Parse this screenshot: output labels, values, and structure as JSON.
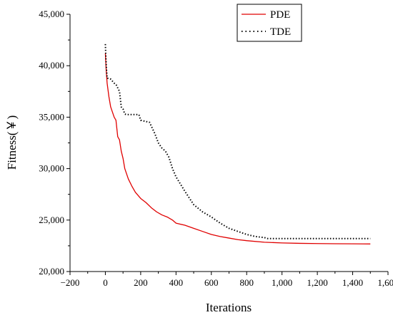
{
  "chart_data": {
    "type": "line",
    "title": "",
    "xlabel": "Iterations",
    "ylabel": "Fitness(￥)",
    "xlim": [
      -200,
      1600
    ],
    "ylim": [
      20000,
      45000
    ],
    "xticks": [
      -200,
      0,
      200,
      400,
      600,
      800,
      1000,
      1200,
      1400,
      1600
    ],
    "xtick_labels": [
      "−200",
      "0",
      "200",
      "400",
      "600",
      "800",
      "1,000",
      "1,200",
      "1,400",
      "1,600"
    ],
    "yticks": [
      20000,
      25000,
      30000,
      35000,
      40000,
      45000
    ],
    "ytick_labels": [
      "20,000",
      "25,000",
      "30,000",
      "35,000",
      "40,000",
      "45,000"
    ],
    "grid": false,
    "legend_position": "top-right",
    "series": [
      {
        "name": "PDE",
        "color": "#e00000",
        "style": "solid",
        "x": [
          0,
          5,
          10,
          20,
          30,
          40,
          50,
          60,
          70,
          80,
          90,
          100,
          110,
          120,
          130,
          150,
          170,
          190,
          200,
          230,
          260,
          290,
          320,
          350,
          380,
          400,
          450,
          500,
          550,
          600,
          650,
          700,
          750,
          800,
          900,
          1000,
          1100,
          1200,
          1300,
          1400,
          1500
        ],
        "y": [
          41200,
          39500,
          38300,
          37000,
          36000,
          35500,
          35000,
          34700,
          33100,
          32800,
          31700,
          31000,
          30000,
          29500,
          29000,
          28300,
          27700,
          27300,
          27100,
          26700,
          26200,
          25800,
          25500,
          25300,
          25000,
          24700,
          24500,
          24200,
          23900,
          23600,
          23400,
          23250,
          23100,
          23000,
          22850,
          22780,
          22740,
          22720,
          22700,
          22690,
          22680
        ]
      },
      {
        "name": "TDE",
        "color": "#000000",
        "style": "dotted",
        "x": [
          0,
          5,
          10,
          30,
          50,
          60,
          80,
          90,
          100,
          110,
          120,
          190,
          200,
          250,
          280,
          300,
          320,
          340,
          360,
          380,
          400,
          450,
          500,
          550,
          600,
          650,
          700,
          750,
          800,
          850,
          900,
          920,
          1000,
          1200,
          1400,
          1500
        ],
        "y": [
          42100,
          40000,
          38800,
          38700,
          38300,
          38200,
          37500,
          36000,
          35800,
          35300,
          35250,
          35250,
          34700,
          34500,
          33400,
          32500,
          32000,
          31700,
          31100,
          30000,
          29200,
          27800,
          26500,
          25800,
          25300,
          24700,
          24200,
          23900,
          23600,
          23400,
          23300,
          23200,
          23200,
          23200,
          23200,
          23200
        ]
      }
    ]
  }
}
